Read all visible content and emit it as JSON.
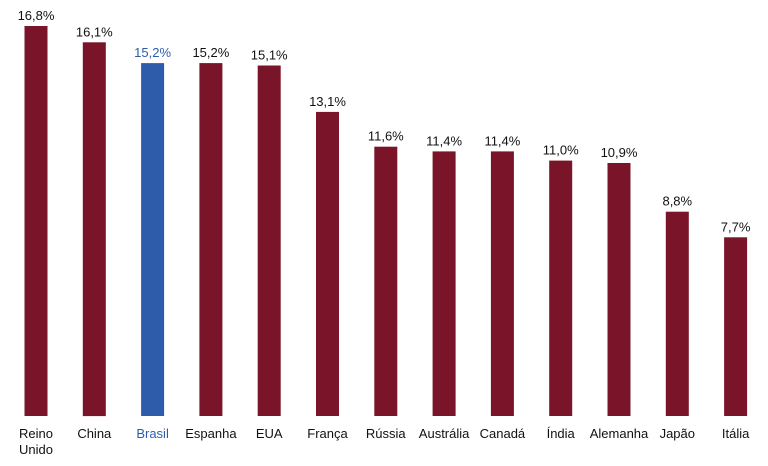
{
  "chart_data": {
    "type": "bar",
    "categories": [
      "Reino Unido",
      "China",
      "Brasil",
      "Espanha",
      "EUA",
      "França",
      "Rússia",
      "Austrália",
      "Canadá",
      "Índia",
      "Alemanha",
      "Japão",
      "Itália"
    ],
    "category_lines": [
      [
        "Reino",
        "Unido"
      ],
      [
        "China"
      ],
      [
        "Brasil"
      ],
      [
        "Espanha"
      ],
      [
        "EUA"
      ],
      [
        "França"
      ],
      [
        "Rússia"
      ],
      [
        "Austrália"
      ],
      [
        "Canadá"
      ],
      [
        "Índia"
      ],
      [
        "Alemanha"
      ],
      [
        "Japão"
      ],
      [
        "Itália"
      ]
    ],
    "values": [
      16.8,
      16.1,
      15.2,
      15.2,
      15.1,
      13.1,
      11.6,
      11.4,
      11.4,
      11.0,
      10.9,
      8.8,
      7.7
    ],
    "value_labels": [
      "16,8%",
      "16,1%",
      "15,2%",
      "15,2%",
      "15,1%",
      "13,1%",
      "11,6%",
      "11,4%",
      "11,4%",
      "11,0%",
      "10,9%",
      "8,8%",
      "7,7%"
    ],
    "highlight": "Brasil",
    "colors": {
      "bar": "#7a1428",
      "highlight_bar": "#2f5caa",
      "label": "#111111",
      "highlight_label": "#2f5caa"
    },
    "ylim": [
      0,
      16.8
    ],
    "grid": false,
    "legend": "none"
  }
}
